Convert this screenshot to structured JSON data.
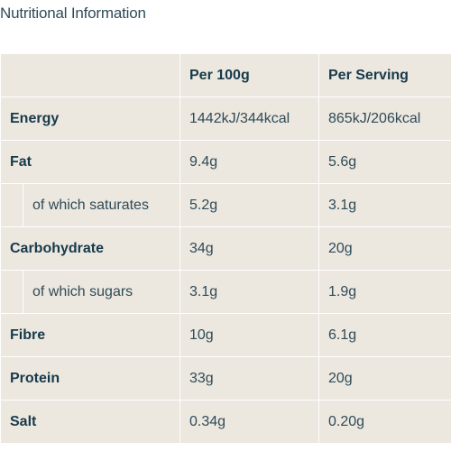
{
  "heading": "Nutritional Information",
  "columns": {
    "label": "",
    "per100": "Per 100g",
    "perServing": "Per Serving"
  },
  "rows": [
    {
      "label": "Energy",
      "per100": "1442kJ/344kcal",
      "perServing": "865kJ/206kcal"
    },
    {
      "label": "Fat",
      "per100": "9.4g",
      "perServing": "5.6g"
    },
    {
      "label": "of which saturates",
      "per100": "5.2g",
      "perServing": "3.1g"
    },
    {
      "label": "Carbohydrate",
      "per100": "34g",
      "perServing": "20g"
    },
    {
      "label": "of which sugars",
      "per100": "3.1g",
      "perServing": "1.9g"
    },
    {
      "label": "Fibre",
      "per100": "10g",
      "perServing": "6.1g"
    },
    {
      "label": "Protein",
      "per100": "33g",
      "perServing": "20g"
    },
    {
      "label": "Salt",
      "per100": "0.34g",
      "perServing": "0.20g"
    }
  ]
}
